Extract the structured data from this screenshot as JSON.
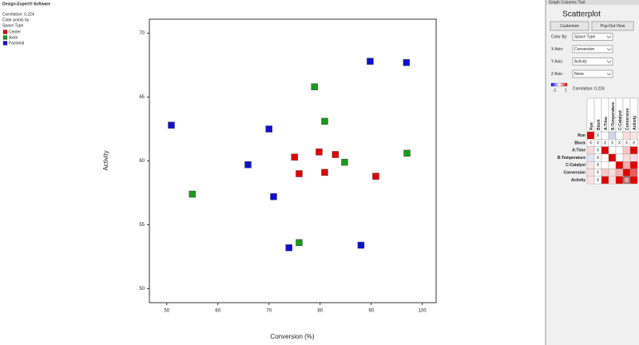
{
  "header": {
    "software": "Design-Expert® Software",
    "correlation": "Correlation: 0.224",
    "color_note": "Color points by",
    "color_by": "Space Type"
  },
  "chart_data": {
    "type": "scatter",
    "x_label": "Conversion (%)",
    "y_label": "Activity",
    "xlim": [
      46.6,
      102.7
    ],
    "ylim": [
      48.9,
      71.1
    ],
    "xticks": [
      50,
      60,
      70,
      80,
      90,
      100
    ],
    "yticks": [
      50,
      55,
      60,
      65,
      70
    ],
    "series": [
      {
        "name": "Center",
        "color": "#e00000",
        "x": [
          75.0,
          75.9,
          79.8,
          80.9,
          83.0,
          90.9
        ],
        "values": [
          60.3,
          59.0,
          60.7,
          59.1,
          60.5,
          58.8
        ]
      },
      {
        "name": "Axial",
        "color": "#1a9a1a",
        "x": [
          55.0,
          75.9,
          78.9,
          80.9,
          84.8,
          97.0
        ],
        "values": [
          57.4,
          53.6,
          65.8,
          63.1,
          59.9,
          60.6
        ]
      },
      {
        "name": "Factorial",
        "color": "#1010d0",
        "x": [
          50.9,
          65.9,
          70.0,
          70.9,
          73.9,
          88.0,
          89.8,
          96.9
        ],
        "values": [
          62.8,
          59.7,
          62.5,
          57.2,
          53.2,
          53.4,
          67.8,
          67.7
        ]
      }
    ]
  },
  "panel": {
    "tool_title": "Graph Columns Tool",
    "title": "Scatterplot",
    "buttons": [
      "Customize",
      "Pop-Out View"
    ],
    "controls": [
      {
        "label": "Color By:",
        "value": "Space Type"
      },
      {
        "label": "X Axis:",
        "value": "Conversion"
      },
      {
        "label": "Y Axis:",
        "value": "Activity"
      },
      {
        "label": "Z Axis:",
        "value": "None"
      }
    ],
    "colorbar_min": "-1",
    "colorbar_max": "1",
    "correlation": "Correlation: 0.224",
    "matrix": {
      "columns": [
        "Run",
        "Block",
        "A:Time",
        "B:Temperature",
        "C:Catalyst",
        "Conversion",
        "Activity"
      ],
      "cells": [
        [
          null,
          "X",
          null,
          null,
          null,
          null,
          null
        ],
        [
          "X",
          "X",
          "X",
          "X",
          "X",
          "X",
          "X"
        ],
        [
          null,
          "X",
          null,
          null,
          null,
          null,
          null
        ],
        [
          null,
          "X",
          null,
          null,
          null,
          null,
          null
        ],
        [
          null,
          "X",
          null,
          null,
          null,
          null,
          null
        ],
        [
          null,
          "X",
          null,
          null,
          null,
          null,
          null
        ],
        [
          null,
          "X",
          null,
          null,
          null,
          null,
          null
        ]
      ],
      "colors": [
        [
          "#e00000",
          "#ffffff",
          "#ffffff",
          "#cfd3f0",
          "#ffffff",
          "#f8dede",
          "#fbe3e3"
        ],
        [
          "#ffffff",
          "#ffffff",
          "#ffffff",
          "#ffffff",
          "#ffffff",
          "#ffffff",
          "#ffffff"
        ],
        [
          "#f9dada",
          "#ffffff",
          "#e00000",
          "#ffffff",
          "#ffffff",
          "#f7c6c6",
          "#e00000"
        ],
        [
          "#dfe3f7",
          "#ffffff",
          "#ffffff",
          "#e00000",
          "#ffffff",
          "#fadcdc",
          "#fadcdc"
        ],
        [
          "#fce5e5",
          "#ffffff",
          "#ffffff",
          "#ffffff",
          "#e00000",
          "#f5a9a9",
          "#e00000"
        ],
        [
          "#fbdede",
          "#ffffff",
          "#f8caca",
          "#fbdcdc",
          "#f5b0b0",
          "#e00000",
          "#ec5a5a"
        ],
        [
          "#fbe2e2",
          "#ffffff",
          "#e00000",
          "#fbdcdc",
          "#e00000",
          "#f0a0a0",
          "#e00000"
        ]
      ]
    }
  }
}
